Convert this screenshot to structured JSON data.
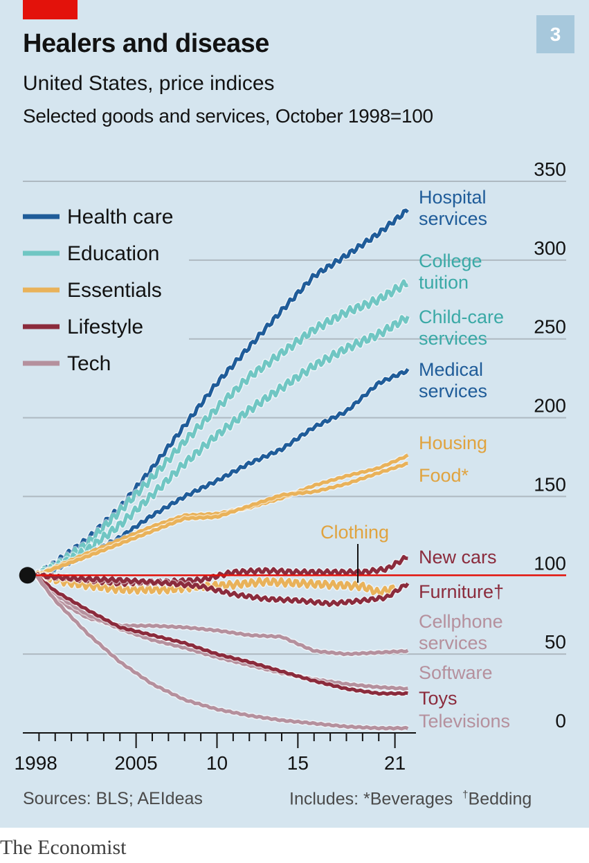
{
  "header": {
    "title": "Healers and disease",
    "subtitle": "United States, price indices",
    "subtitle2": "Selected goods and services, October 1998=100",
    "number": "3"
  },
  "footer": {
    "sources": "Sources: BLS; AEIdeas",
    "notes_prefix": "Includes: *Beverages",
    "notes_dagger": "†",
    "notes_suffix": "Bedding",
    "brand": "The Economist"
  },
  "chart_data": {
    "type": "line",
    "title": "Healers and disease",
    "ylim": [
      0,
      350
    ],
    "yticks": [
      0,
      50,
      100,
      150,
      200,
      250,
      300,
      350
    ],
    "xlim": [
      1998.0,
      2022.3
    ],
    "xtick_labels": [
      {
        "x": 1998.8,
        "label": "1998"
      },
      {
        "x": 2005,
        "label": "2005"
      },
      {
        "x": 2010,
        "label": "10"
      },
      {
        "x": 2015,
        "label": "15"
      },
      {
        "x": 2021,
        "label": "21"
      }
    ],
    "baseline": 100,
    "legend": [
      {
        "name": "Health care",
        "color": "#1f5c99"
      },
      {
        "name": "Education",
        "color": "#70c6c3"
      },
      {
        "name": "Essentials",
        "color": "#e9b25a"
      },
      {
        "name": "Lifestyle",
        "color": "#8b2b3c"
      },
      {
        "name": "Tech",
        "color": "#b5909d"
      }
    ],
    "series": [
      {
        "name": "Hospital services",
        "group": "Health care",
        "color": "#1f5c99",
        "points": [
          [
            1998.8,
            100
          ],
          [
            2000,
            108
          ],
          [
            2002,
            123
          ],
          [
            2004,
            143
          ],
          [
            2006,
            168
          ],
          [
            2008,
            195
          ],
          [
            2010,
            222
          ],
          [
            2012,
            245
          ],
          [
            2014,
            268
          ],
          [
            2016,
            290
          ],
          [
            2018,
            303
          ],
          [
            2020,
            317
          ],
          [
            2021.8,
            332
          ]
        ]
      },
      {
        "name": "College tuition",
        "group": "Education",
        "color": "#70c6c3",
        "points": [
          [
            1998.8,
            100
          ],
          [
            2000,
            106
          ],
          [
            2002,
            120
          ],
          [
            2004,
            141
          ],
          [
            2006,
            162
          ],
          [
            2008,
            185
          ],
          [
            2010,
            206
          ],
          [
            2012,
            226
          ],
          [
            2014,
            241
          ],
          [
            2016,
            256
          ],
          [
            2018,
            267
          ],
          [
            2020,
            275
          ],
          [
            2021.8,
            286
          ]
        ]
      },
      {
        "name": "Child-care services",
        "group": "Education",
        "color": "#70c6c3",
        "points": [
          [
            1998.8,
            100
          ],
          [
            2000,
            105
          ],
          [
            2002,
            116
          ],
          [
            2004,
            132
          ],
          [
            2006,
            151
          ],
          [
            2008,
            171
          ],
          [
            2010,
            189
          ],
          [
            2012,
            205
          ],
          [
            2014,
            219
          ],
          [
            2016,
            233
          ],
          [
            2018,
            244
          ],
          [
            2020,
            253
          ],
          [
            2021.8,
            264
          ]
        ]
      },
      {
        "name": "Medical services",
        "group": "Health care",
        "color": "#1f5c99",
        "points": [
          [
            1998.8,
            100
          ],
          [
            2000,
            104
          ],
          [
            2002,
            113
          ],
          [
            2004,
            124
          ],
          [
            2006,
            138
          ],
          [
            2008,
            150
          ],
          [
            2010,
            160
          ],
          [
            2012,
            171
          ],
          [
            2014,
            180
          ],
          [
            2016,
            194
          ],
          [
            2018,
            204
          ],
          [
            2020,
            222
          ],
          [
            2021.8,
            230
          ]
        ]
      },
      {
        "name": "Housing",
        "group": "Essentials",
        "color": "#e9b25a",
        "points": [
          [
            1998.8,
            100
          ],
          [
            2002,
            114
          ],
          [
            2006,
            131
          ],
          [
            2008,
            138
          ],
          [
            2010,
            139
          ],
          [
            2012,
            143
          ],
          [
            2014,
            149
          ],
          [
            2016,
            157
          ],
          [
            2018,
            163
          ],
          [
            2020,
            168
          ],
          [
            2021.8,
            176
          ]
        ]
      },
      {
        "name": "Food*",
        "group": "Essentials",
        "color": "#e9b25a",
        "points": [
          [
            1998.8,
            100
          ],
          [
            2002,
            112
          ],
          [
            2006,
            128
          ],
          [
            2008,
            136
          ],
          [
            2010,
            137
          ],
          [
            2012,
            144
          ],
          [
            2014,
            151
          ],
          [
            2016,
            153
          ],
          [
            2018,
            158
          ],
          [
            2020,
            165
          ],
          [
            2021.8,
            171
          ]
        ]
      },
      {
        "name": "Clothing",
        "group": "Essentials",
        "color": "#e9b25a",
        "points": [
          [
            1998.8,
            100
          ],
          [
            2001,
            95
          ],
          [
            2004,
            91
          ],
          [
            2007,
            91
          ],
          [
            2009,
            93
          ],
          [
            2011,
            94
          ],
          [
            2013,
            96
          ],
          [
            2015,
            95
          ],
          [
            2017,
            94
          ],
          [
            2019,
            93
          ],
          [
            2020,
            89
          ],
          [
            2021,
            92
          ]
        ]
      },
      {
        "name": "New cars",
        "group": "Lifestyle",
        "color": "#8b2b3c",
        "points": [
          [
            1998.8,
            100
          ],
          [
            2001,
            98
          ],
          [
            2004,
            95
          ],
          [
            2007,
            96
          ],
          [
            2009,
            97
          ],
          [
            2011,
            102
          ],
          [
            2013,
            103
          ],
          [
            2015,
            102
          ],
          [
            2017,
            102
          ],
          [
            2019,
            102
          ],
          [
            2020.5,
            104
          ],
          [
            2021.8,
            112
          ]
        ]
      },
      {
        "name": "Furniture†",
        "group": "Lifestyle",
        "color": "#8b2b3c",
        "points": [
          [
            1998.8,
            100
          ],
          [
            2001,
            98
          ],
          [
            2004,
            97
          ],
          [
            2007,
            95
          ],
          [
            2009,
            93
          ],
          [
            2011,
            88
          ],
          [
            2013,
            85
          ],
          [
            2015,
            84
          ],
          [
            2017,
            82
          ],
          [
            2019,
            84
          ],
          [
            2020.5,
            86
          ],
          [
            2021.8,
            95
          ]
        ]
      },
      {
        "name": "Cellphone services",
        "group": "Tech",
        "color": "#b5909d",
        "points": [
          [
            1998.8,
            100
          ],
          [
            2000,
            85
          ],
          [
            2002,
            73
          ],
          [
            2004,
            68
          ],
          [
            2006,
            68
          ],
          [
            2008,
            67
          ],
          [
            2010,
            65
          ],
          [
            2012,
            62
          ],
          [
            2014,
            61
          ],
          [
            2016,
            52
          ],
          [
            2018,
            50
          ],
          [
            2020,
            51
          ],
          [
            2021.8,
            52
          ]
        ]
      },
      {
        "name": "Software",
        "group": "Tech",
        "color": "#b5909d",
        "points": [
          [
            1998.8,
            100
          ],
          [
            2000,
            88
          ],
          [
            2002,
            75
          ],
          [
            2004,
            66
          ],
          [
            2006,
            59
          ],
          [
            2008,
            54
          ],
          [
            2010,
            48
          ],
          [
            2012,
            43
          ],
          [
            2014,
            38
          ],
          [
            2016,
            34
          ],
          [
            2018,
            31
          ],
          [
            2020,
            29
          ],
          [
            2021.8,
            28
          ]
        ]
      },
      {
        "name": "Toys",
        "group": "Lifestyle",
        "color": "#8b2b3c",
        "points": [
          [
            1998.8,
            100
          ],
          [
            2000,
            90
          ],
          [
            2002,
            78
          ],
          [
            2004,
            67
          ],
          [
            2006,
            62
          ],
          [
            2008,
            57
          ],
          [
            2010,
            50
          ],
          [
            2012,
            45
          ],
          [
            2014,
            39
          ],
          [
            2016,
            33
          ],
          [
            2018,
            28
          ],
          [
            2020,
            25
          ],
          [
            2021.8,
            25
          ]
        ]
      },
      {
        "name": "Televisions",
        "group": "Tech",
        "color": "#b5909d",
        "points": [
          [
            1998.8,
            100
          ],
          [
            2000,
            84
          ],
          [
            2002,
            63
          ],
          [
            2004,
            45
          ],
          [
            2006,
            31
          ],
          [
            2008,
            21
          ],
          [
            2010,
            15
          ],
          [
            2012,
            11
          ],
          [
            2014,
            8
          ],
          [
            2016,
            6
          ],
          [
            2018,
            4
          ],
          [
            2020,
            3
          ],
          [
            2021.8,
            3
          ]
        ]
      }
    ]
  }
}
